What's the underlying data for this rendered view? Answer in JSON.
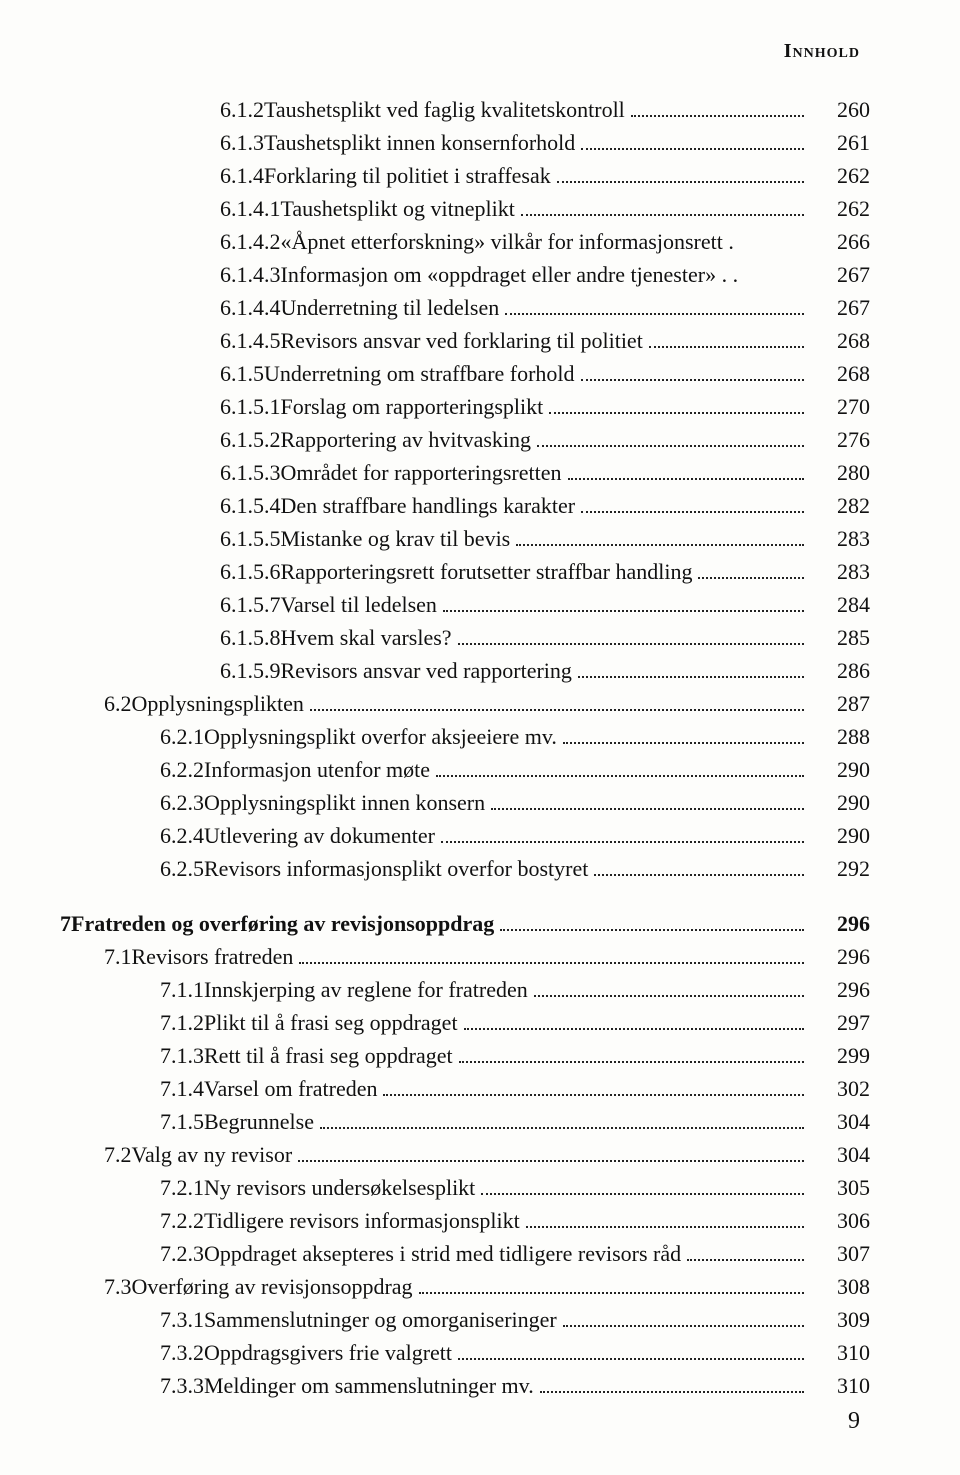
{
  "header": "Innhold",
  "page_number": "9",
  "font": {
    "body_size_pt": 16,
    "header_size_pt": 15,
    "color": "#111111",
    "bg": "#fdfdfb"
  },
  "entries": [
    {
      "indent": 3,
      "num": "6.1.2",
      "title": "Taushetsplikt ved faglig kvalitetskontroll",
      "page": "260",
      "bold": false
    },
    {
      "indent": 3,
      "num": "6.1.3",
      "title": "Taushetsplikt innen konsernforhold",
      "page": "261",
      "bold": false
    },
    {
      "indent": 3,
      "num": "6.1.4",
      "title": "Forklaring til politiet i straffesak",
      "page": "262",
      "bold": false
    },
    {
      "indent": 3,
      "num": "6.1.4.1",
      "title": "Taushetsplikt og vitneplikt",
      "page": "262",
      "bold": false
    },
    {
      "indent": 3,
      "num": "6.1.4.2",
      "title": "«Åpnet etterforskning» vilkår for informasjonsrett .",
      "page": "266",
      "bold": false,
      "nodots": true
    },
    {
      "indent": 3,
      "num": "6.1.4.3",
      "title": "Informasjon om «oppdraget eller andre tjenester» . .",
      "page": "267",
      "bold": false,
      "nodots": true
    },
    {
      "indent": 3,
      "num": "6.1.4.4",
      "title": "Underretning til ledelsen",
      "page": "267",
      "bold": false
    },
    {
      "indent": 3,
      "num": "6.1.4.5",
      "title": "Revisors ansvar ved forklaring til politiet",
      "page": "268",
      "bold": false
    },
    {
      "indent": 3,
      "num": "6.1.5",
      "title": "Underretning om straffbare forhold",
      "page": "268",
      "bold": false
    },
    {
      "indent": 3,
      "num": "6.1.5.1",
      "title": "Forslag om rapporteringsplikt",
      "page": "270",
      "bold": false
    },
    {
      "indent": 3,
      "num": "6.1.5.2",
      "title": "Rapportering av hvitvasking",
      "page": "276",
      "bold": false
    },
    {
      "indent": 3,
      "num": "6.1.5.3",
      "title": "Området for rapporteringsretten",
      "page": "280",
      "bold": false
    },
    {
      "indent": 3,
      "num": "6.1.5.4",
      "title": "Den straffbare handlings karakter",
      "page": "282",
      "bold": false
    },
    {
      "indent": 3,
      "num": "6.1.5.5",
      "title": "Mistanke og krav til bevis",
      "page": "283",
      "bold": false
    },
    {
      "indent": 3,
      "num": "6.1.5.6",
      "title": "Rapporteringsrett forutsetter straffbar handling",
      "page": "283",
      "bold": false
    },
    {
      "indent": 3,
      "num": "6.1.5.7",
      "title": "Varsel til ledelsen",
      "page": "284",
      "bold": false
    },
    {
      "indent": 3,
      "num": "6.1.5.8",
      "title": "Hvem skal varsles?",
      "page": "285",
      "bold": false
    },
    {
      "indent": 3,
      "num": "6.1.5.9",
      "title": "Revisors ansvar ved rapportering",
      "page": "286",
      "bold": false
    },
    {
      "indent": 1,
      "num": "6.2",
      "title": "Opplysningsplikten",
      "page": "287",
      "bold": false
    },
    {
      "indent": 2,
      "num": "6.2.1",
      "title": "Opplysningsplikt overfor aksjeeiere mv.",
      "page": "288",
      "bold": false
    },
    {
      "indent": 2,
      "num": "6.2.2",
      "title": "Informasjon utenfor møte",
      "page": "290",
      "bold": false
    },
    {
      "indent": 2,
      "num": "6.2.3",
      "title": "Opplysningsplikt innen konsern",
      "page": "290",
      "bold": false
    },
    {
      "indent": 2,
      "num": "6.2.4",
      "title": "Utlevering av dokumenter",
      "page": "290",
      "bold": false
    },
    {
      "indent": 2,
      "num": "6.2.5",
      "title": "Revisors informasjonsplikt overfor bostyret",
      "page": "292",
      "bold": false
    },
    {
      "gap": true
    },
    {
      "indent": 0,
      "num": "7",
      "title": "Fratreden og overføring av revisjonsoppdrag",
      "page": "296",
      "bold": true
    },
    {
      "indent": 1,
      "num": "7.1",
      "title": "Revisors fratreden",
      "page": "296",
      "bold": false
    },
    {
      "indent": 2,
      "num": "7.1.1",
      "title": "Innskjerping av reglene for fratreden",
      "page": "296",
      "bold": false
    },
    {
      "indent": 2,
      "num": "7.1.2",
      "title": "Plikt til å frasi seg oppdraget",
      "page": "297",
      "bold": false
    },
    {
      "indent": 2,
      "num": "7.1.3",
      "title": "Rett til å frasi seg oppdraget",
      "page": "299",
      "bold": false
    },
    {
      "indent": 2,
      "num": "7.1.4",
      "title": "Varsel om fratreden",
      "page": "302",
      "bold": false
    },
    {
      "indent": 2,
      "num": "7.1.5",
      "title": "Begrunnelse",
      "page": "304",
      "bold": false
    },
    {
      "indent": 1,
      "num": "7.2",
      "title": "Valg av ny revisor",
      "page": "304",
      "bold": false
    },
    {
      "indent": 2,
      "num": "7.2.1",
      "title": "Ny revisors undersøkelsesplikt",
      "page": "305",
      "bold": false
    },
    {
      "indent": 2,
      "num": "7.2.2",
      "title": "Tidligere revisors informasjonsplikt",
      "page": "306",
      "bold": false
    },
    {
      "indent": 2,
      "num": "7.2.3",
      "title": "Oppdraget aksepteres i strid med tidligere revisors råd",
      "page": "307",
      "bold": false
    },
    {
      "indent": 1,
      "num": "7.3",
      "title": "Overføring av revisjonsoppdrag",
      "page": "308",
      "bold": false
    },
    {
      "indent": 2,
      "num": "7.3.1",
      "title": "Sammenslutninger og omorganiseringer",
      "page": "309",
      "bold": false
    },
    {
      "indent": 2,
      "num": "7.3.2",
      "title": "Oppdragsgivers frie valgrett",
      "page": "310",
      "bold": false
    },
    {
      "indent": 2,
      "num": "7.3.3",
      "title": "Meldinger om sammenslutninger mv.",
      "page": "310",
      "bold": false
    }
  ]
}
